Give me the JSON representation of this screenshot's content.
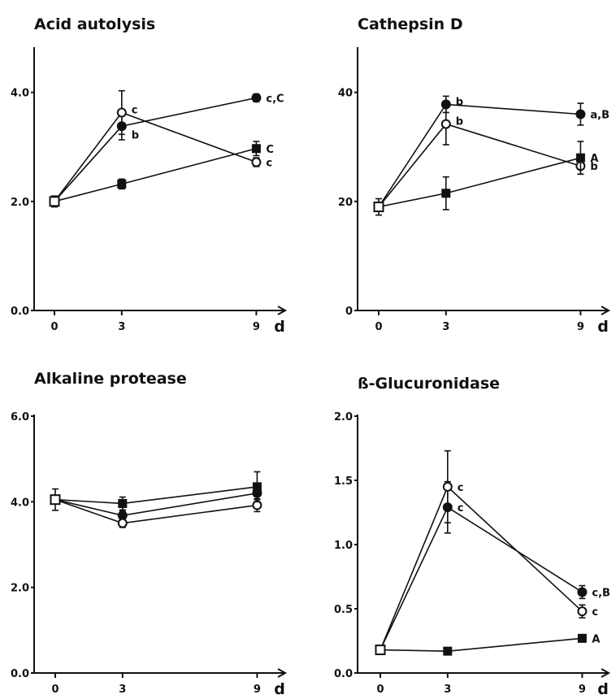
{
  "chart_data": [
    {
      "type": "line",
      "title": "Acid autolysis",
      "x": [
        0,
        3,
        9
      ],
      "x_ticks": [
        "0",
        "3",
        "9"
      ],
      "x_unit": "d",
      "y_ticks": [
        "0.0",
        "2.0",
        "4.0"
      ],
      "ylim": [
        0,
        4.8
      ],
      "series": [
        {
          "marker": "filled-circle",
          "values": [
            2.0,
            3.38,
            3.9
          ],
          "errors": [
            0.1,
            0.25,
            0.07
          ],
          "labels": [
            "",
            "b",
            "c,C"
          ]
        },
        {
          "marker": "open-circle",
          "values": [
            2.0,
            3.63,
            2.72
          ],
          "errors": [
            0.1,
            0.4,
            0.08
          ],
          "labels": [
            "",
            "c",
            "c"
          ]
        },
        {
          "marker": "filled-square",
          "values": [
            2.0,
            2.32,
            2.97
          ],
          "errors": [
            0.1,
            0.09,
            0.13
          ],
          "labels": [
            "",
            "",
            "C"
          ]
        }
      ]
    },
    {
      "type": "line",
      "title": "Cathepsin D",
      "x": [
        0,
        3,
        9
      ],
      "x_ticks": [
        "0",
        "3",
        "9"
      ],
      "x_unit": "d",
      "y_ticks": [
        "0",
        "20",
        "40"
      ],
      "ylim": [
        0,
        48
      ],
      "series": [
        {
          "marker": "filled-circle",
          "values": [
            19,
            37.8,
            36
          ],
          "errors": [
            1.5,
            1.5,
            2
          ],
          "labels": [
            "",
            "b",
            "a,B"
          ]
        },
        {
          "marker": "open-circle",
          "values": [
            19,
            34.2,
            26.5
          ],
          "errors": [
            1.5,
            3.8,
            1.5
          ],
          "labels": [
            "",
            "b",
            "b"
          ]
        },
        {
          "marker": "filled-square",
          "values": [
            19,
            21.5,
            28
          ],
          "errors": [
            1.5,
            3,
            3
          ],
          "labels": [
            "",
            "",
            "A"
          ]
        }
      ]
    },
    {
      "type": "line",
      "title": "Alkaline protease",
      "x": [
        0,
        3,
        9
      ],
      "x_ticks": [
        "0",
        "3",
        "9"
      ],
      "x_unit": "d",
      "y_ticks": [
        "0.0",
        "2.0",
        "4.0",
        "6.0"
      ],
      "ylim": [
        0,
        6
      ],
      "series": [
        {
          "marker": "filled-circle",
          "values": [
            4.05,
            3.68,
            4.2
          ],
          "errors": [
            0.25,
            0.1,
            0.15
          ],
          "labels": [
            "",
            "",
            ""
          ]
        },
        {
          "marker": "open-circle",
          "values": [
            4.05,
            3.5,
            3.92
          ],
          "errors": [
            0.25,
            0.1,
            0.15
          ],
          "labels": [
            "",
            "",
            ""
          ]
        },
        {
          "marker": "filled-square",
          "values": [
            4.05,
            3.96,
            4.35
          ],
          "errors": [
            0.25,
            0.15,
            0.35
          ],
          "labels": [
            "",
            "",
            ""
          ]
        }
      ]
    },
    {
      "type": "line",
      "title": "ß-Glucuronidase",
      "x": [
        0,
        3,
        9
      ],
      "x_ticks": [
        "0",
        "3",
        "9"
      ],
      "x_unit": "d",
      "y_ticks": [
        "0.0",
        "0.5",
        "1.0",
        "1.5",
        "2.0"
      ],
      "ylim": [
        0,
        2.0
      ],
      "series": [
        {
          "marker": "filled-circle",
          "values": [
            0.18,
            1.29,
            0.63
          ],
          "errors": [
            0.02,
            0.2,
            0.05
          ],
          "labels": [
            "",
            "c",
            "c,B"
          ]
        },
        {
          "marker": "open-circle",
          "values": [
            0.18,
            1.45,
            0.48
          ],
          "errors": [
            0.02,
            0.28,
            0.05
          ],
          "labels": [
            "",
            "c",
            "c"
          ]
        },
        {
          "marker": "filled-square",
          "values": [
            0.18,
            0.17,
            0.27
          ],
          "errors": [
            0.02,
            0.02,
            0.02
          ],
          "labels": [
            "",
            "",
            "A"
          ]
        }
      ]
    }
  ]
}
